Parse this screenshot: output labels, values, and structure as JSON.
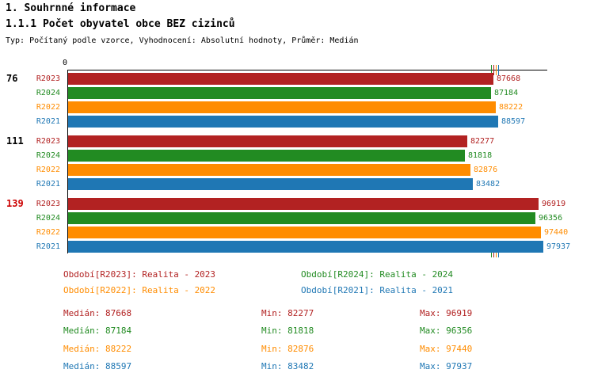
{
  "header": {
    "title": "1. Souhrnné informace",
    "subtitle": "1.1.1 Počet obyvatel obce BEZ cizinců",
    "description": "Typ: Počítaný podle vzorce, Vyhodnocení: Absolutní hodnoty, Průměr: Medián"
  },
  "colors": {
    "R2023": "#b22222",
    "R2024": "#228b22",
    "R2022": "#ff8c00",
    "R2021": "#1f77b4",
    "axis": "#000000",
    "group_label_highlight": "#cc0000"
  },
  "series_labels": {
    "R2023": "R2023",
    "R2024": "R2024",
    "R2022": "R2022",
    "R2021": "R2021"
  },
  "chart_data": {
    "type": "bar",
    "orientation": "horizontal",
    "title": "1.1.1 Počet obyvatel obce BEZ cizinců",
    "x_axis": {
      "zero_label": "0",
      "min": 0,
      "max": 97937
    },
    "series_order": [
      "R2023",
      "R2024",
      "R2022",
      "R2021"
    ],
    "groups": [
      {
        "label": "76",
        "label_color": "#000000",
        "values": {
          "R2023": 87668,
          "R2024": 87184,
          "R2022": 88222,
          "R2021": 88597
        }
      },
      {
        "label": "111",
        "label_color": "#000000",
        "values": {
          "R2023": 82277,
          "R2024": 81818,
          "R2022": 82876,
          "R2021": 83482
        }
      },
      {
        "label": "139",
        "label_color": "#cc0000",
        "values": {
          "R2023": 96919,
          "R2024": 96356,
          "R2022": 97440,
          "R2021": 97937
        }
      }
    ],
    "medians": {
      "R2023": 87668,
      "R2024": 87184,
      "R2022": 88222,
      "R2021": 88597
    }
  },
  "legend": {
    "r2023": "Období[R2023]: Realita - 2023",
    "r2024": "Období[R2024]: Realita - 2024",
    "r2022": "Období[R2022]: Realita - 2022",
    "r2021": "Období[R2021]: Realita - 2021"
  },
  "stats": {
    "r2023": {
      "median": "Medián: 87668",
      "min": "Min: 82277",
      "max": "Max: 96919"
    },
    "r2024": {
      "median": "Medián: 87184",
      "min": "Min: 81818",
      "max": "Max: 96356"
    },
    "r2022": {
      "median": "Medián: 88222",
      "min": "Min: 82876",
      "max": "Max: 97440"
    },
    "r2021": {
      "median": "Medián: 88597",
      "min": "Min: 83482",
      "max": "Max: 97937"
    }
  }
}
